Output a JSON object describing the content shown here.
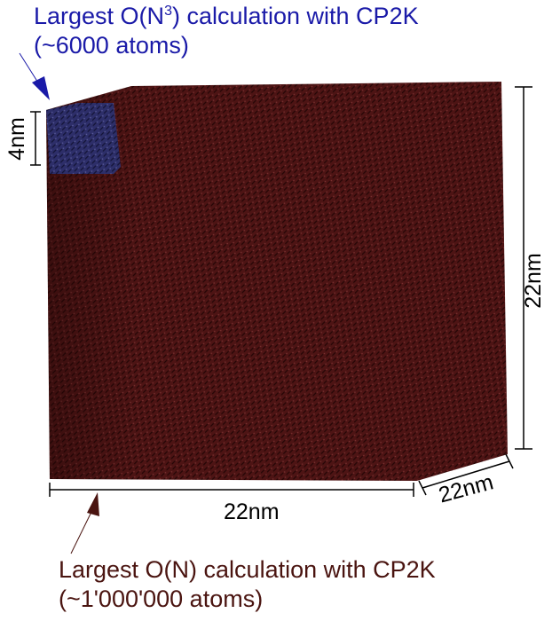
{
  "top_annotation": {
    "line1_prefix": "Largest O(N",
    "line1_sup": "3",
    "line1_suffix": ") calculation with CP2K",
    "line2": "(~6000 atoms)",
    "color": "#1a1aa8"
  },
  "bottom_annotation": {
    "line1": "Largest O(N) calculation with CP2K",
    "line2": "(~1'000'000 atoms)",
    "color": "#4a1410"
  },
  "dimensions": {
    "bottom": "22nm",
    "right": "22nm",
    "depth": "22nm",
    "small": "4nm"
  },
  "colors": {
    "large_cell": "#4a1212",
    "small_cell": "#2a2d6e",
    "dimension_lines": "#000000"
  }
}
